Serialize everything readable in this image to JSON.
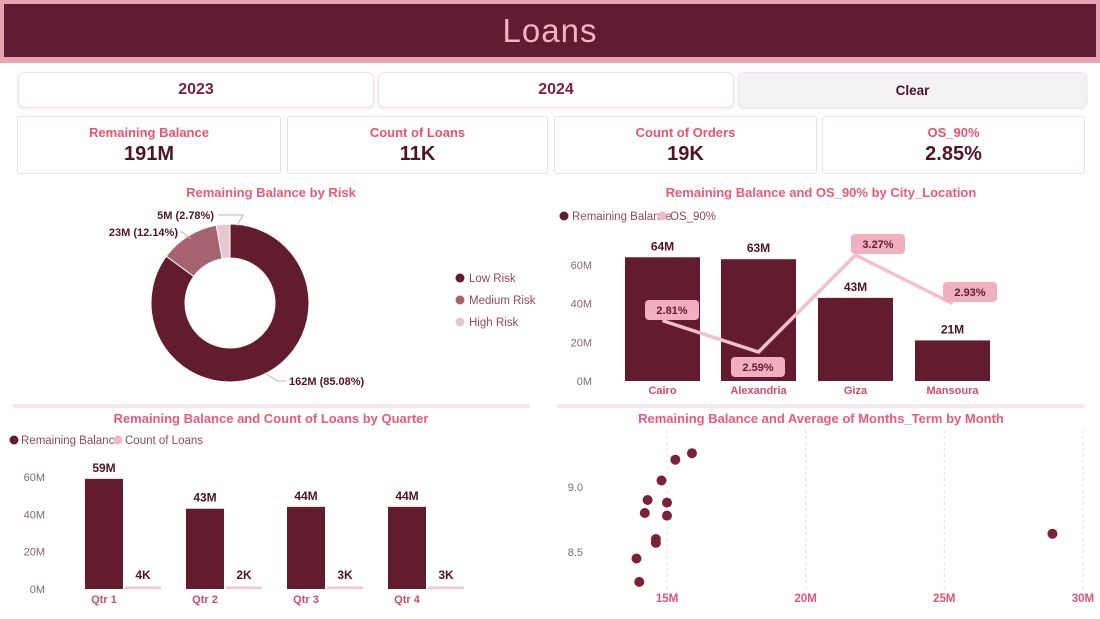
{
  "header": {
    "title": "Loans"
  },
  "filters": {
    "year_2023": "2023",
    "year_2024": "2024",
    "clear": "Clear"
  },
  "kpis": [
    {
      "label": "Remaining Balance",
      "value": "191M"
    },
    {
      "label": "Count of Loans",
      "value": "11K"
    },
    {
      "label": "Count of Orders",
      "value": "19K"
    },
    {
      "label": "OS_90%",
      "value": "2.85%"
    }
  ],
  "colors": {
    "header_bg": "#5F1D31",
    "header_frame": "#E7A4B3",
    "header_text": "#F2B3C3",
    "accent_title": "#EC5A78",
    "bar_dark": "#631B30",
    "medium_mauve": "#A4636F",
    "light_pink": "#E7C7CF",
    "line_pink": "#F2BFCA",
    "label_box_pink": "#F1AFBF",
    "scatter_point": "#7A2338",
    "category_text": "#D04C68"
  },
  "chart_data": [
    {
      "id": "risk_donut",
      "type": "pie",
      "donut": true,
      "title": "Remaining Balance by Risk",
      "legend_position": "right",
      "slices": [
        {
          "name": "Low Risk",
          "value_m": 162,
          "pct": 85.08,
          "label": "162M (85.08%)",
          "color": "#631B30"
        },
        {
          "name": "Medium Risk",
          "value_m": 23,
          "pct": 12.14,
          "label": "23M (12.14%)",
          "color": "#A4636F"
        },
        {
          "name": "High Risk",
          "value_m": 5,
          "pct": 2.78,
          "label": "5M (2.78%)",
          "color": "#E7C7CF"
        }
      ]
    },
    {
      "id": "city_combo",
      "type": "bar",
      "title": "Remaining Balance and OS_90% by City_Location",
      "categories": [
        "Cairo",
        "Alexandria",
        "Giza",
        "Mansoura"
      ],
      "series": [
        {
          "name": "Remaining Balance",
          "kind": "bar",
          "color": "#631B30",
          "values": [
            64,
            63,
            43,
            21
          ],
          "labels": [
            "64M",
            "63M",
            "43M",
            "21M"
          ]
        },
        {
          "name": "OS_90%",
          "kind": "line",
          "color": "#F2BFCA",
          "values": [
            2.81,
            2.59,
            3.27,
            2.93
          ],
          "labels": [
            "2.81%",
            "2.59%",
            "3.27%",
            "2.93%"
          ]
        }
      ],
      "y_ticks": [
        "0M",
        "20M",
        "40M",
        "60M"
      ],
      "y_tick_values": [
        0,
        20,
        40,
        60
      ],
      "ylim": [
        0,
        62
      ],
      "legend_position": "top-left"
    },
    {
      "id": "quarter_bars",
      "type": "bar",
      "title": "Remaining Balance and Count of Loans by Quarter",
      "categories": [
        "Qtr 1",
        "Qtr 2",
        "Qtr 3",
        "Qtr 4"
      ],
      "series": [
        {
          "name": "Remaining Balance",
          "kind": "bar",
          "color": "#631B30",
          "values": [
            59,
            43,
            44,
            44
          ],
          "labels": [
            "59M",
            "43M",
            "44M",
            "44M"
          ]
        },
        {
          "name": "Count of Loans",
          "kind": "bar",
          "color": "#F4C3CD",
          "values_k": [
            4,
            2,
            3,
            3
          ],
          "labels": [
            "4K",
            "2K",
            "3K",
            "3K"
          ]
        }
      ],
      "y_ticks": [
        "0M",
        "20M",
        "40M",
        "60M"
      ],
      "y_tick_values": [
        0,
        20,
        40,
        60
      ],
      "ylim": [
        0,
        62
      ],
      "legend_position": "top-left"
    },
    {
      "id": "month_scatter",
      "type": "scatter",
      "title": "Remaining Balance and Average of Months_Term by Month",
      "x_ticks": [
        "15M",
        "20M",
        "25M",
        "30M"
      ],
      "x_tick_values": [
        15,
        20,
        25,
        30
      ],
      "y_ticks": [
        "9.0",
        "8.5"
      ],
      "y_tick_values": [
        9.0,
        8.5
      ],
      "xlim": [
        13.3,
        30.6
      ],
      "ylim": [
        8.1,
        9.45
      ],
      "grid": "vertical-dashed",
      "points": [
        {
          "x": 15.9,
          "y": 9.26
        },
        {
          "x": 15.3,
          "y": 9.21
        },
        {
          "x": 14.8,
          "y": 9.05
        },
        {
          "x": 14.3,
          "y": 8.9
        },
        {
          "x": 15.0,
          "y": 8.88
        },
        {
          "x": 14.2,
          "y": 8.8
        },
        {
          "x": 15.0,
          "y": 8.78
        },
        {
          "x": 14.6,
          "y": 8.6
        },
        {
          "x": 14.6,
          "y": 8.57
        },
        {
          "x": 13.9,
          "y": 8.45
        },
        {
          "x": 14.0,
          "y": 8.27
        },
        {
          "x": 28.9,
          "y": 8.64
        }
      ]
    }
  ]
}
